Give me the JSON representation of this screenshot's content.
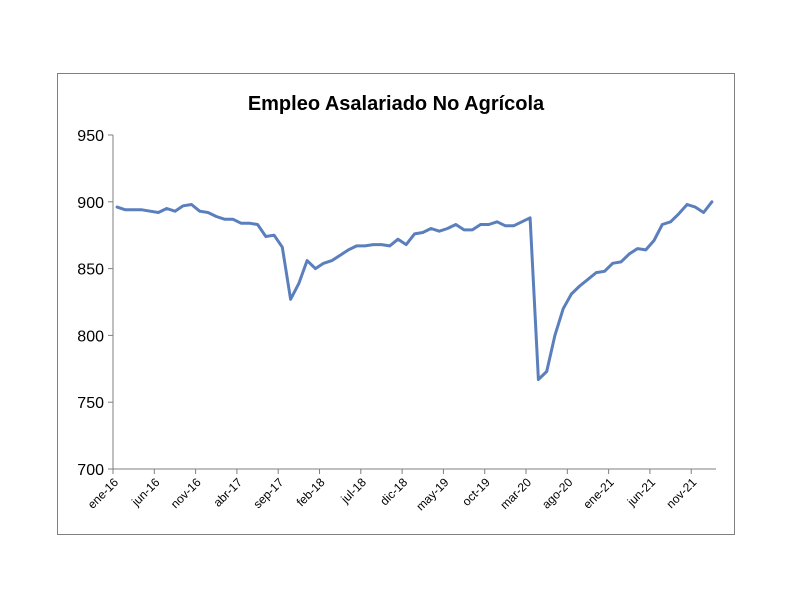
{
  "chart_data": {
    "type": "line",
    "title": "Empleo Asalariado No Agrícola",
    "xlabel": "",
    "ylabel": "",
    "ylim": [
      700,
      950
    ],
    "yticks": [
      700,
      750,
      800,
      850,
      900,
      950
    ],
    "ytick_labels": [
      "700",
      "750",
      "800",
      "850",
      "900",
      "950"
    ],
    "xtick_labels": [
      "ene-16",
      "jun-16",
      "nov-16",
      "abr-17",
      "sep-17",
      "feb-18",
      "jul-18",
      "dic-18",
      "may-19",
      "oct-19",
      "mar-20",
      "ago-20",
      "ene-21",
      "jun-21",
      "nov-21"
    ],
    "xtick_positions": [
      0,
      5,
      10,
      15,
      20,
      25,
      30,
      35,
      40,
      45,
      50,
      55,
      60,
      65,
      70
    ],
    "grid": false,
    "legend": "none",
    "series": [
      {
        "color": "#5b7fbd",
        "values": [
          896,
          894,
          894,
          894,
          893,
          892,
          895,
          893,
          897,
          898,
          893,
          892,
          889,
          887,
          887,
          884,
          884,
          883,
          874,
          875,
          866,
          827,
          839,
          856,
          850,
          854,
          856,
          860,
          864,
          867,
          867,
          868,
          868,
          867,
          872,
          868,
          876,
          877,
          880,
          878,
          880,
          883,
          879,
          879,
          883,
          883,
          885,
          882,
          882,
          885,
          888,
          767,
          773,
          800,
          820,
          831,
          837,
          842,
          847,
          848,
          854,
          855,
          861,
          865,
          864,
          871,
          883,
          885,
          891,
          898,
          896,
          892,
          900
        ]
      }
    ]
  }
}
